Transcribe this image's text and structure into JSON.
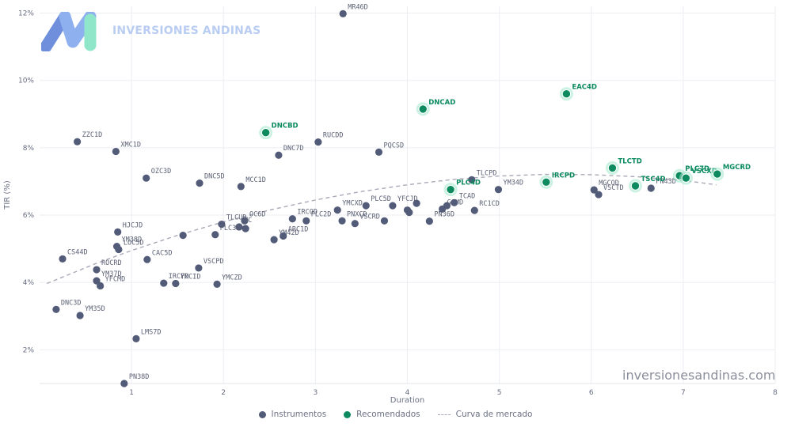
{
  "brand": {
    "name": "INVERSIONES ANDINAS",
    "watermark": "inversionesandinas.com",
    "logo_colors": [
      "#6f8fdc",
      "#8fb0ef",
      "#8fe6c9"
    ]
  },
  "legend": {
    "instruments": "Instrumentos",
    "recommended": "Recomendados",
    "curve": "Curva de mercado"
  },
  "chart_data": {
    "type": "scatter",
    "xlabel": "Duration",
    "ylabel": "TIR (%)",
    "xlim": [
      0,
      8
    ],
    "ylim": [
      1,
      12.2
    ],
    "x_ticks": [
      "1",
      "2",
      "3",
      "4",
      "5",
      "6",
      "7",
      "8"
    ],
    "y_ticks": [
      "2%",
      "4%",
      "6%",
      "8%",
      "10%",
      "12%"
    ],
    "grid": true,
    "legend_position": "bottom-center",
    "colors": {
      "instruments": "#525b78",
      "recommended": "#0d8a5f",
      "halo": "#9fe6c8",
      "curve": "#a9a9b8"
    },
    "series": [
      {
        "name": "Instrumentos",
        "points": [
          {
            "label": "MR46D",
            "x": 3.3,
            "y": 11.98
          },
          {
            "label": "ZZC1D",
            "x": 0.41,
            "y": 8.18
          },
          {
            "label": "XMC1D",
            "x": 0.83,
            "y": 7.89
          },
          {
            "label": "RUCDD",
            "x": 3.03,
            "y": 8.17
          },
          {
            "label": "DNC7D",
            "x": 2.6,
            "y": 7.78
          },
          {
            "label": "PQCSD",
            "x": 3.69,
            "y": 7.87
          },
          {
            "label": "OZC3D",
            "x": 1.16,
            "y": 7.1
          },
          {
            "label": "DNC5D",
            "x": 1.74,
            "y": 6.95
          },
          {
            "label": "MCC1D",
            "x": 2.19,
            "y": 6.85
          },
          {
            "label": "TLCPD",
            "x": 4.7,
            "y": 7.05
          },
          {
            "label": "YM34D",
            "x": 4.99,
            "y": 6.76
          },
          {
            "label": "MGCOD",
            "x": 6.03,
            "y": 6.75
          },
          {
            "label": "VSCTD",
            "x": 6.08,
            "y": 6.61
          },
          {
            "label": "PN43D",
            "x": 6.65,
            "y": 6.8
          },
          {
            "label": "YMCXD",
            "x": 3.24,
            "y": 6.15
          },
          {
            "label": "PLC5D",
            "x": 3.55,
            "y": 6.28
          },
          {
            "label": "YFCJD",
            "x": 3.84,
            "y": 6.28
          },
          {
            "label": "IRCOD",
            "x": 2.75,
            "y": 5.89
          },
          {
            "label": "PLC2D",
            "x": 2.9,
            "y": 5.83
          },
          {
            "label": "PNXCD",
            "x": 3.29,
            "y": 5.83
          },
          {
            "label": "VSCRD",
            "x": 3.43,
            "y": 5.75
          },
          {
            "label": "",
            "x": 3.75,
            "y": 5.83
          },
          {
            "label": "",
            "x": 4.0,
            "y": 6.15
          },
          {
            "label": "",
            "x": 4.02,
            "y": 6.08
          },
          {
            "label": "",
            "x": 4.1,
            "y": 6.35
          },
          {
            "label": "GCMD",
            "x": 4.38,
            "y": 6.18
          },
          {
            "label": "",
            "x": 4.43,
            "y": 6.28
          },
          {
            "label": "TCAD",
            "x": 4.51,
            "y": 6.37
          },
          {
            "label": "RC1CD",
            "x": 4.73,
            "y": 6.14
          },
          {
            "label": "PN36D",
            "x": 4.24,
            "y": 5.82
          },
          {
            "label": "TLCUD",
            "x": 1.98,
            "y": 5.73
          },
          {
            "label": "OC6D",
            "x": 2.23,
            "y": 5.83
          },
          {
            "label": "MC",
            "x": 2.17,
            "y": 5.65
          },
          {
            "label": "",
            "x": 2.24,
            "y": 5.6
          },
          {
            "label": "PLC3D",
            "x": 1.91,
            "y": 5.42
          },
          {
            "label": "",
            "x": 1.56,
            "y": 5.4
          },
          {
            "label": "YM42D",
            "x": 2.55,
            "y": 5.27
          },
          {
            "label": "ARC1D",
            "x": 2.65,
            "y": 5.38
          },
          {
            "label": "HJCJD",
            "x": 0.85,
            "y": 5.5
          },
          {
            "label": "YM38D",
            "x": 0.84,
            "y": 5.07
          },
          {
            "label": "LOC5D",
            "x": 0.86,
            "y": 4.98
          },
          {
            "label": "CS44D",
            "x": 0.25,
            "y": 4.7
          },
          {
            "label": "CAC5D",
            "x": 1.17,
            "y": 4.68
          },
          {
            "label": "ROCRD",
            "x": 0.62,
            "y": 4.38
          },
          {
            "label": "VSCPD",
            "x": 1.73,
            "y": 4.43
          },
          {
            "label": "YM37D",
            "x": 0.62,
            "y": 4.05
          },
          {
            "label": "YFCMD",
            "x": 0.66,
            "y": 3.9
          },
          {
            "label": "IRCFD",
            "x": 1.35,
            "y": 3.98
          },
          {
            "label": "YMCID",
            "x": 1.48,
            "y": 3.97
          },
          {
            "label": "YMCZD",
            "x": 1.93,
            "y": 3.95
          },
          {
            "label": "DNC3D",
            "x": 0.18,
            "y": 3.2
          },
          {
            "label": "YM35D",
            "x": 0.44,
            "y": 3.02
          },
          {
            "label": "LMS7D",
            "x": 1.05,
            "y": 2.33
          },
          {
            "label": "PN38D",
            "x": 0.92,
            "y": 1.0
          }
        ]
      },
      {
        "name": "Recomendados",
        "points": [
          {
            "label": "DNCBD",
            "x": 2.46,
            "y": 8.45
          },
          {
            "label": "DNCAD",
            "x": 4.17,
            "y": 9.15
          },
          {
            "label": "EAC4D",
            "x": 5.73,
            "y": 9.6
          },
          {
            "label": "TLCTD",
            "x": 6.23,
            "y": 7.4
          },
          {
            "label": "PLC7D",
            "x": 6.96,
            "y": 7.17
          },
          {
            "label": "VSCXD",
            "x": 7.03,
            "y": 7.1
          },
          {
            "label": "MGCRD",
            "x": 7.37,
            "y": 7.22
          },
          {
            "label": "TSC4D",
            "x": 6.48,
            "y": 6.87
          },
          {
            "label": "IRCPD",
            "x": 5.51,
            "y": 6.98
          },
          {
            "label": "PLC4D",
            "x": 4.47,
            "y": 6.76
          }
        ]
      },
      {
        "name": "Curva de mercado",
        "curve": [
          {
            "x": 0.08,
            "y": 3.97
          },
          {
            "x": 0.6,
            "y": 4.55
          },
          {
            "x": 1.0,
            "y": 4.95
          },
          {
            "x": 1.5,
            "y": 5.4
          },
          {
            "x": 2.0,
            "y": 5.8
          },
          {
            "x": 2.5,
            "y": 6.15
          },
          {
            "x": 3.0,
            "y": 6.45
          },
          {
            "x": 3.5,
            "y": 6.7
          },
          {
            "x": 4.0,
            "y": 6.9
          },
          {
            "x": 4.5,
            "y": 7.06
          },
          {
            "x": 5.0,
            "y": 7.16
          },
          {
            "x": 5.5,
            "y": 7.21
          },
          {
            "x": 6.0,
            "y": 7.2
          },
          {
            "x": 6.5,
            "y": 7.14
          },
          {
            "x": 7.0,
            "y": 7.03
          },
          {
            "x": 7.36,
            "y": 6.9
          }
        ]
      }
    ]
  }
}
